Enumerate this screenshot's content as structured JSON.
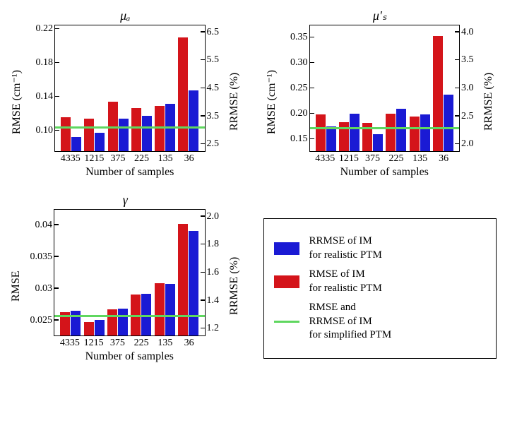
{
  "colors": {
    "red": "#d4141a",
    "blue": "#1a1ad4",
    "green": "#5fd75f",
    "axis": "#000000",
    "bg": "#ffffff"
  },
  "xlabel": "Number of samples",
  "categories": [
    "4335",
    "1215",
    "375",
    "225",
    "135",
    "36"
  ],
  "panels": {
    "mua": {
      "title": "μₐ",
      "ylabel_left": "RMSE (cm⁻¹)",
      "ylabel_right": "RRMSE (%)",
      "yleft": {
        "min": 0.075,
        "max": 0.225,
        "ticks": [
          0.1,
          0.14,
          0.18,
          0.22
        ]
      },
      "yright": {
        "ticks": [
          2.5,
          3.5,
          4.5,
          5.5,
          6.5
        ]
      },
      "baseline": 0.103,
      "red": [
        0.115,
        0.113,
        0.133,
        0.126,
        0.128,
        0.209
      ],
      "blue": [
        0.092,
        0.097,
        0.113,
        0.117,
        0.131,
        0.147
      ]
    },
    "mus": {
      "title": "μ′ₛ",
      "ylabel_left": "RMSE (cm⁻¹)",
      "ylabel_right": "RRMSE (%)",
      "yleft": {
        "min": 0.125,
        "max": 0.375,
        "ticks": [
          0.15,
          0.2,
          0.25,
          0.3,
          0.35
        ]
      },
      "yright": {
        "ticks": [
          2.0,
          2.5,
          3.0,
          3.5,
          4.0
        ]
      },
      "baseline": 0.17,
      "red": [
        0.197,
        0.182,
        0.18,
        0.198,
        0.193,
        0.351
      ],
      "blue": [
        0.173,
        0.198,
        0.158,
        0.208,
        0.197,
        0.236
      ]
    },
    "gamma": {
      "title": "γ",
      "ylabel_left": "RMSE",
      "ylabel_right": "RRMSE (%)",
      "yleft": {
        "min": 0.0225,
        "max": 0.0425,
        "ticks": [
          0.025,
          0.03,
          0.035,
          0.04
        ]
      },
      "yright": {
        "ticks": [
          1.2,
          1.4,
          1.6,
          1.8,
          2.0
        ]
      },
      "baseline": 0.0256,
      "red": [
        0.0262,
        0.0246,
        0.0266,
        0.0289,
        0.0307,
        0.0401
      ],
      "blue": [
        0.0264,
        0.025,
        0.0267,
        0.0291,
        0.0306,
        0.039
      ]
    }
  },
  "legend": {
    "items": [
      {
        "kind": "swatch",
        "colorKey": "blue",
        "text": "RRMSE of IM\nfor realistic PTM"
      },
      {
        "kind": "swatch",
        "colorKey": "red",
        "text": "RMSE of IM\nfor realistic PTM"
      },
      {
        "kind": "line",
        "colorKey": "green",
        "text": "RMSE and\nRRMSE of IM\nfor simplified PTM"
      }
    ]
  }
}
